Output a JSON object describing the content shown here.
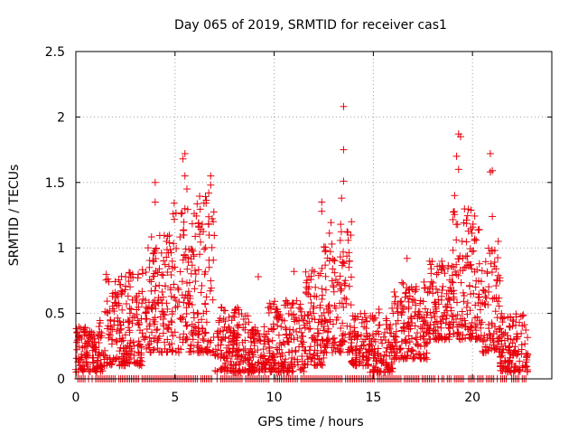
{
  "chart_data": {
    "type": "scatter",
    "title": "Day 065 of 2019, SRMTID for receiver cas1",
    "xlabel": "GPS time / hours",
    "ylabel": "SRMTID / TECUs",
    "xlim": [
      0,
      24
    ],
    "ylim": [
      0,
      2.5
    ],
    "xticks": [
      0,
      5,
      10,
      15,
      20
    ],
    "yticks": [
      0,
      0.5,
      1,
      1.5,
      2,
      2.5
    ],
    "xtick_labels": [
      "0",
      "5",
      "10",
      "15",
      "20"
    ],
    "ytick_labels": [
      "0",
      "0.5",
      "1",
      "1.5",
      "2",
      "2.5"
    ],
    "grid": true,
    "series": [
      {
        "name": "SRMTID",
        "color": "#e8000b",
        "marker": "plus",
        "activity_profile": [
          {
            "start": 0.0,
            "end": 0.8,
            "low": 0.05,
            "high": 0.4
          },
          {
            "start": 0.8,
            "end": 1.4,
            "low": 0.05,
            "high": 0.45
          },
          {
            "start": 1.4,
            "end": 2.4,
            "low": 0.1,
            "high": 0.8
          },
          {
            "start": 2.4,
            "end": 3.6,
            "low": 0.1,
            "high": 0.85
          },
          {
            "start": 3.6,
            "end": 4.8,
            "low": 0.2,
            "high": 1.1
          },
          {
            "start": 4.8,
            "end": 6.0,
            "low": 0.2,
            "high": 1.35
          },
          {
            "start": 6.0,
            "end": 7.0,
            "low": 0.2,
            "high": 1.4
          },
          {
            "start": 7.0,
            "end": 8.8,
            "low": 0.05,
            "high": 0.55
          },
          {
            "start": 8.8,
            "end": 9.6,
            "low": 0.05,
            "high": 0.4
          },
          {
            "start": 9.6,
            "end": 11.5,
            "low": 0.05,
            "high": 0.6
          },
          {
            "start": 11.5,
            "end": 12.5,
            "low": 0.1,
            "high": 0.85
          },
          {
            "start": 12.5,
            "end": 13.9,
            "low": 0.2,
            "high": 1.2
          },
          {
            "start": 13.9,
            "end": 14.8,
            "low": 0.1,
            "high": 0.5
          },
          {
            "start": 14.8,
            "end": 16.0,
            "low": 0.05,
            "high": 0.55
          },
          {
            "start": 16.0,
            "end": 17.8,
            "low": 0.15,
            "high": 0.75
          },
          {
            "start": 17.8,
            "end": 19.0,
            "low": 0.3,
            "high": 0.9
          },
          {
            "start": 19.0,
            "end": 20.5,
            "low": 0.3,
            "high": 1.3
          },
          {
            "start": 20.5,
            "end": 21.4,
            "low": 0.2,
            "high": 1.0
          },
          {
            "start": 21.4,
            "end": 22.8,
            "low": 0.05,
            "high": 0.5
          }
        ],
        "outliers": [
          {
            "x": 4.0,
            "y": 1.5
          },
          {
            "x": 4.0,
            "y": 1.35
          },
          {
            "x": 4.9,
            "y": 1.26
          },
          {
            "x": 5.5,
            "y": 1.72
          },
          {
            "x": 5.4,
            "y": 1.68
          },
          {
            "x": 5.5,
            "y": 1.55
          },
          {
            "x": 5.6,
            "y": 1.45
          },
          {
            "x": 5.5,
            "y": 1.3
          },
          {
            "x": 6.8,
            "y": 1.55
          },
          {
            "x": 6.8,
            "y": 1.48
          },
          {
            "x": 6.7,
            "y": 1.42
          },
          {
            "x": 13.5,
            "y": 2.08
          },
          {
            "x": 13.5,
            "y": 1.75
          },
          {
            "x": 13.5,
            "y": 1.51
          },
          {
            "x": 12.4,
            "y": 1.35
          },
          {
            "x": 12.4,
            "y": 1.28
          },
          {
            "x": 13.4,
            "y": 1.38
          },
          {
            "x": 13.9,
            "y": 1.2
          },
          {
            "x": 19.3,
            "y": 1.87
          },
          {
            "x": 19.4,
            "y": 1.85
          },
          {
            "x": 19.2,
            "y": 1.7
          },
          {
            "x": 19.3,
            "y": 1.6
          },
          {
            "x": 20.9,
            "y": 1.72
          },
          {
            "x": 20.9,
            "y": 1.58
          },
          {
            "x": 21.0,
            "y": 1.59
          },
          {
            "x": 19.1,
            "y": 1.4
          },
          {
            "x": 21.0,
            "y": 1.24
          },
          {
            "x": 9.2,
            "y": 0.78
          },
          {
            "x": 11.0,
            "y": 0.82
          },
          {
            "x": 16.7,
            "y": 0.92
          },
          {
            "x": 21.3,
            "y": 1.05
          }
        ],
        "zero_baseline": {
          "y": 0,
          "x_start": 0.1,
          "x_end": 22.7
        }
      }
    ]
  }
}
